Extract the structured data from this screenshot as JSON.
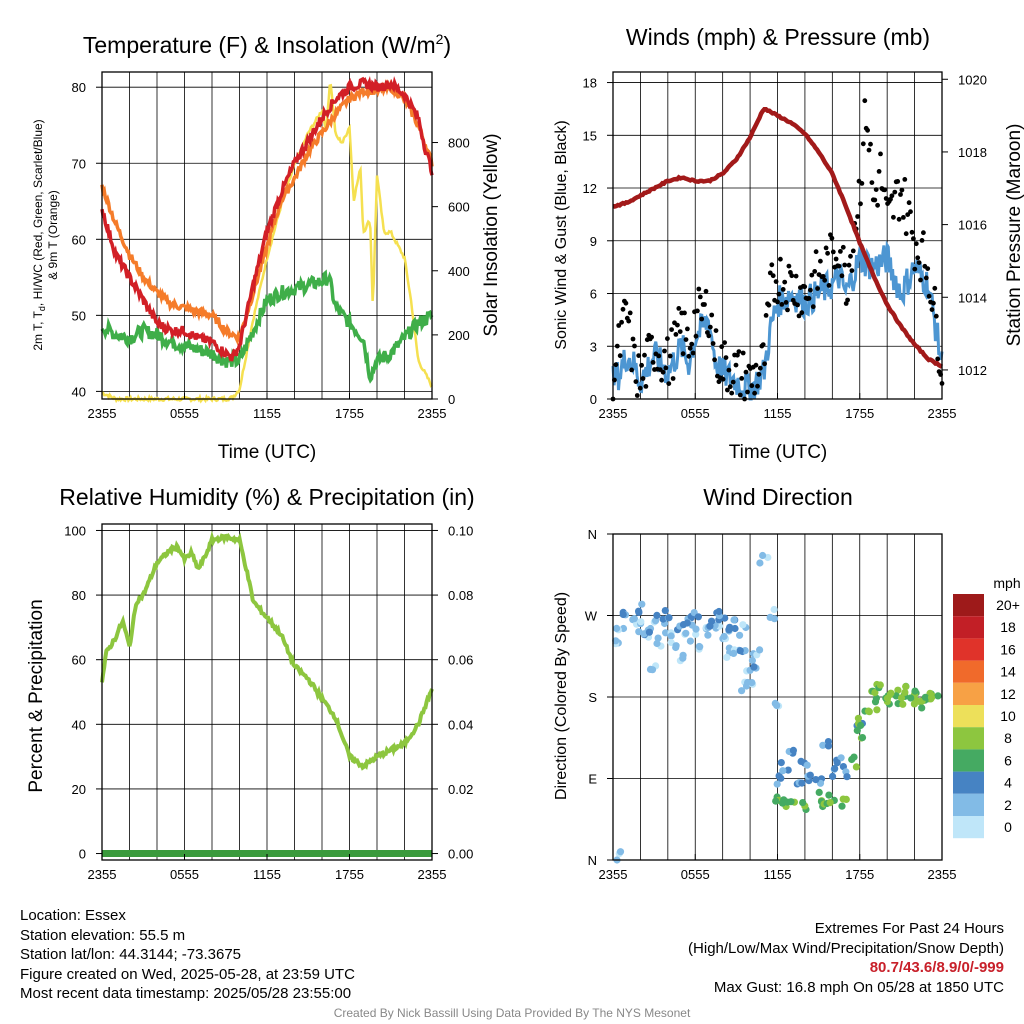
{
  "colors": {
    "temp_red": "#d21f26",
    "dew_green": "#3fae49",
    "temp9m_orange": "#f57c2a",
    "solar_yellow": "#f5e050",
    "wind_blue": "#4d96d2",
    "gust_black": "#000000",
    "pressure_maroon": "#a21a1a",
    "rh_green": "#8dc63f",
    "precip_green": "#3a9a3c"
  },
  "panels": {
    "temp": {
      "title": "Temperature (F) & Insolation (W/m",
      "title_sup": "2",
      "title_end": ")",
      "xlabel": "Time (UTC)",
      "ylabel_left_1": "2m T, T",
      "ylabel_left_sub": "d",
      "ylabel_left_2": ", HI/WC (Red, Green, Scarlet/Blue)",
      "ylabel_left_3": "& 9m T (Orange)",
      "ylabel_right": "Solar Insolation (Yellow)"
    },
    "wind": {
      "title": "Winds (mph) & Pressure (mb)",
      "xlabel": "Time (UTC)",
      "ylabel_left": "Sonic Wind & Gust (Blue, Black)",
      "ylabel_right": "Station Pressure (Maroon)"
    },
    "rh": {
      "title": "Relative Humidity (%) & Precipitation (in)",
      "ylabel_left": "Percent & Precipitation"
    },
    "dir": {
      "title": "Wind Direction",
      "ylabel_left": "Direction (Colored By Speed)",
      "legend_unit": "mph"
    }
  },
  "info": {
    "location": "Location: Essex",
    "elevation": "Station elevation: 55.5 m",
    "latlon": "Station lat/lon: 44.3144; -73.3675",
    "created": "Figure created on Wed, 2025-05-28, at 23:59 UTC",
    "recent": "Most recent data timestamp: 2025/05/28 23:55:00",
    "extremes_title": "Extremes For Past 24 Hours",
    "extremes_sub": "(High/Low/Max Wind/Precipitation/Snow Depth)",
    "extremes_values": "80.7/43.6/8.9/0/-999",
    "max_gust": "Max Gust: 16.8 mph On 05/28 at 1850 UTC",
    "credit": "Created By Nick Bassill Using Data Provided By The NYS Mesonet"
  },
  "chart_data": [
    {
      "type": "line",
      "title": "Temperature (F) & Insolation (W/m2)",
      "xlabel": "Time (UTC)",
      "x_ticks": [
        "2355",
        "0555",
        "1155",
        "1755",
        "2355"
      ],
      "x_hours": [
        0,
        2,
        4,
        6,
        8,
        10,
        12,
        14,
        16,
        18,
        20,
        22,
        24
      ],
      "ylim": [
        39,
        82
      ],
      "y_ticks": [
        40,
        50,
        60,
        70,
        80
      ],
      "y2lim": [
        0,
        1020
      ],
      "y2_ticks": [
        0,
        200,
        400,
        600,
        800
      ],
      "series": [
        {
          "key": "temp2m",
          "x": [
            0,
            1,
            2,
            3,
            4,
            5,
            6,
            7,
            8,
            9,
            9.5,
            10,
            11,
            12,
            13,
            14,
            15,
            16,
            17,
            18,
            19,
            20,
            21,
            22,
            23,
            23.5,
            24
          ],
          "values": [
            64,
            58,
            55,
            52,
            49,
            48,
            48,
            47,
            46.5,
            45,
            44.5,
            46,
            54,
            61,
            66,
            70,
            73,
            76,
            78.5,
            80,
            80.5,
            80,
            80.5,
            79,
            76,
            72,
            69
          ]
        },
        {
          "key": "dewpoint",
          "x": [
            0,
            1,
            2,
            3,
            4,
            5,
            6,
            7,
            8,
            9,
            10,
            11,
            12,
            13,
            14,
            15,
            16,
            16.5,
            17,
            18,
            19,
            19.5,
            20,
            21,
            22,
            23,
            24
          ],
          "values": [
            48.5,
            47.5,
            47,
            48,
            47.5,
            46.5,
            46,
            45.5,
            45,
            44,
            44,
            48,
            52,
            53,
            53.5,
            54,
            54.5,
            55,
            51,
            49,
            47,
            42,
            44,
            45,
            47,
            49,
            50
          ]
        },
        {
          "key": "temp9m",
          "x": [
            0,
            1,
            2,
            3,
            4,
            5,
            6,
            7,
            8,
            9,
            10,
            11,
            12,
            13,
            14,
            15,
            16,
            17,
            18,
            19,
            20,
            21,
            22,
            23,
            24
          ],
          "values": [
            67,
            62,
            58,
            55,
            53,
            51.5,
            51,
            50.5,
            50,
            48,
            47,
            53,
            59,
            65,
            68,
            71.5,
            74,
            76.5,
            78.5,
            79.5,
            79.5,
            80,
            78.5,
            75,
            70
          ]
        },
        {
          "key": "solar",
          "x": [
            0,
            1,
            2,
            3,
            4,
            5,
            6,
            7,
            8,
            9,
            9.5,
            10,
            11,
            12,
            13,
            14,
            15,
            16,
            16.3,
            16.6,
            17,
            17.5,
            18,
            18.3,
            18.8,
            19,
            19.5,
            19.7,
            20,
            20.5,
            21,
            21.5,
            22,
            22.5,
            23,
            24
          ],
          "values": [
            20,
            0,
            0,
            0,
            0,
            0,
            0,
            0,
            0,
            0,
            5,
            30,
            250,
            440,
            600,
            730,
            830,
            900,
            840,
            1000,
            820,
            800,
            850,
            620,
            720,
            520,
            560,
            280,
            700,
            520,
            520,
            480,
            440,
            300,
            120,
            40
          ]
        }
      ]
    },
    {
      "type": "line",
      "title": "Winds (mph) & Pressure (mb)",
      "xlabel": "Time (UTC)",
      "x_ticks": [
        "2355",
        "0555",
        "1155",
        "1755",
        "2355"
      ],
      "ylim": [
        0,
        18.6
      ],
      "y_ticks": [
        0,
        3,
        6,
        9,
        12,
        15,
        18
      ],
      "y2lim": [
        1011.2,
        1020.2
      ],
      "y2_ticks": [
        1012,
        1014,
        1016,
        1018,
        1020
      ],
      "series": [
        {
          "key": "wind",
          "x": [
            0,
            0.5,
            1,
            1.5,
            2,
            3,
            4,
            5,
            5.5,
            6,
            7,
            7.5,
            8,
            9,
            10,
            11,
            11.5,
            12,
            13,
            14,
            15,
            16,
            16.5,
            17,
            18,
            19,
            20,
            21,
            22,
            23,
            24
          ],
          "values": [
            1,
            1.5,
            2.5,
            2,
            1,
            2.5,
            1.5,
            3,
            2,
            3.5,
            4.5,
            2,
            1.5,
            1,
            0.5,
            1.5,
            4,
            5.5,
            6,
            5.5,
            6,
            6.5,
            7,
            6,
            8,
            7.5,
            8,
            6,
            7.5,
            6.5,
            2
          ]
        },
        {
          "key": "gust",
          "x": [
            0,
            0.5,
            1,
            1.5,
            2,
            3,
            4,
            5,
            5.5,
            6,
            7,
            7.5,
            8,
            9,
            10,
            11,
            11.5,
            12,
            13,
            14,
            15,
            16,
            16.5,
            17,
            18,
            18.5,
            19,
            19.5,
            20,
            21,
            22,
            23,
            24
          ],
          "values": [
            1.5,
            3,
            5,
            2,
            1,
            3,
            2,
            4,
            3,
            4.5,
            5.2,
            2.5,
            2,
            1.5,
            1,
            2,
            6,
            7,
            6.5,
            6,
            7,
            8,
            9,
            6.5,
            12,
            16.8,
            11,
            13,
            10,
            12,
            9,
            7.5,
            2
          ]
        },
        {
          "key": "pressure",
          "x": [
            0,
            1,
            2,
            3,
            4,
            5,
            6,
            7,
            8,
            9,
            10,
            11,
            11.5,
            12,
            13,
            14,
            15,
            16,
            17,
            18,
            19,
            20,
            21,
            22,
            23,
            24
          ],
          "values": [
            1016.5,
            1016.6,
            1016.8,
            1017,
            1017.2,
            1017.3,
            1017.2,
            1017.2,
            1017.4,
            1017.8,
            1018.4,
            1019.2,
            1019.1,
            1019.0,
            1018.8,
            1018.5,
            1018,
            1017.4,
            1016.5,
            1015.5,
            1014.6,
            1013.8,
            1013.2,
            1012.7,
            1012.3,
            1012.1
          ]
        }
      ]
    },
    {
      "type": "line",
      "title": "Relative Humidity (%) & Precipitation (in)",
      "x_ticks": [
        "2355",
        "0555",
        "1155",
        "1755",
        "2355"
      ],
      "ylim": [
        -2,
        102
      ],
      "y_ticks": [
        0,
        20,
        40,
        60,
        80,
        100
      ],
      "y2_ticks": [
        "0.00",
        "0.02",
        "0.04",
        "0.06",
        "0.08",
        "0.10"
      ],
      "series": [
        {
          "key": "rh",
          "x": [
            0,
            0.3,
            1,
            1.5,
            2,
            2.5,
            3,
            4,
            5,
            5.5,
            6,
            6.5,
            7,
            7.5,
            8,
            9,
            10,
            10.5,
            11,
            12,
            13,
            14,
            15,
            16,
            17,
            18,
            19,
            20,
            21,
            22,
            23,
            24
          ],
          "values": [
            53,
            62,
            67,
            72,
            64,
            78,
            80,
            90,
            94,
            95,
            91,
            93,
            88,
            92,
            97,
            98,
            97,
            88,
            78,
            73,
            68,
            58,
            54,
            48,
            42,
            30,
            27,
            30,
            32,
            34,
            40,
            51
          ]
        },
        {
          "key": "precip",
          "x": [
            0,
            24
          ],
          "values": [
            0,
            0
          ]
        }
      ]
    },
    {
      "type": "scatter",
      "title": "Wind Direction",
      "ylabel": "Direction (Colored By Speed)",
      "x_ticks": [
        "2355",
        "0555",
        "1155",
        "1755",
        "2355"
      ],
      "y_ticks": [
        "N",
        "E",
        "S",
        "W",
        "N"
      ],
      "ylim": [
        0,
        360
      ],
      "legend": {
        "unit": "mph",
        "labels": [
          "20+",
          "18",
          "16",
          "14",
          "12",
          "10",
          "8",
          "6",
          "4",
          "2",
          "0"
        ],
        "colors": [
          "#9e1a1a",
          "#c21f26",
          "#e0332a",
          "#f06a2b",
          "#f7a145",
          "#ede05a",
          "#8dc63f",
          "#45aa62",
          "#4683c3",
          "#82bbe6",
          "#bfe6f9"
        ]
      },
      "points_by_speed": [
        {
          "speed": 2,
          "x": [
            0.2,
            0.5,
            1.5,
            2,
            2.5,
            3,
            3.5,
            4,
            4.5,
            5,
            5.5,
            6,
            6.5,
            7,
            7.5,
            8,
            8.5,
            9,
            9.5,
            10,
            10.5,
            11,
            11.5,
            12,
            0.5,
            3,
            9.5,
            10
          ],
          "values": [
            240,
            250,
            265,
            258,
            250,
            262,
            240,
            250,
            235,
            220,
            245,
            255,
            230,
            250,
            262,
            240,
            230,
            235,
            255,
            215,
            230,
            330,
            270,
            175,
            5,
            210,
            190,
            195
          ]
        },
        {
          "speed": 4,
          "x": [
            1,
            2,
            2.5,
            3.5,
            4,
            5,
            5.5,
            6,
            7,
            7.5,
            8,
            8.5,
            9,
            9.5,
            10.5,
            12,
            12.5,
            13,
            13.5,
            14,
            14.5,
            15,
            15.5,
            16,
            16.5,
            17,
            18
          ],
          "values": [
            270,
            280,
            255,
            265,
            270,
            255,
            262,
            268,
            260,
            268,
            272,
            250,
            262,
            228,
            218,
            90,
            105,
            122,
            88,
            108,
            92,
            85,
            128,
            98,
            112,
            98,
            145
          ]
        },
        {
          "speed": 6,
          "x": [
            12,
            12.5,
            13,
            14,
            15,
            15.5,
            16,
            17.5,
            18,
            19,
            20,
            21,
            22,
            23,
            23.5
          ],
          "values": [
            65,
            60,
            62,
            60,
            68,
            62,
            66,
            108,
            138,
            172,
            178,
            175,
            180,
            178,
            180
          ]
        },
        {
          "speed": 8,
          "x": [
            17,
            18,
            18.5,
            19,
            19.5,
            20,
            20.5,
            21,
            21.5,
            22,
            22.5,
            23
          ],
          "values": [
            62,
            155,
            170,
            182,
            190,
            178,
            185,
            175,
            186,
            178,
            172,
            184
          ]
        }
      ]
    }
  ]
}
